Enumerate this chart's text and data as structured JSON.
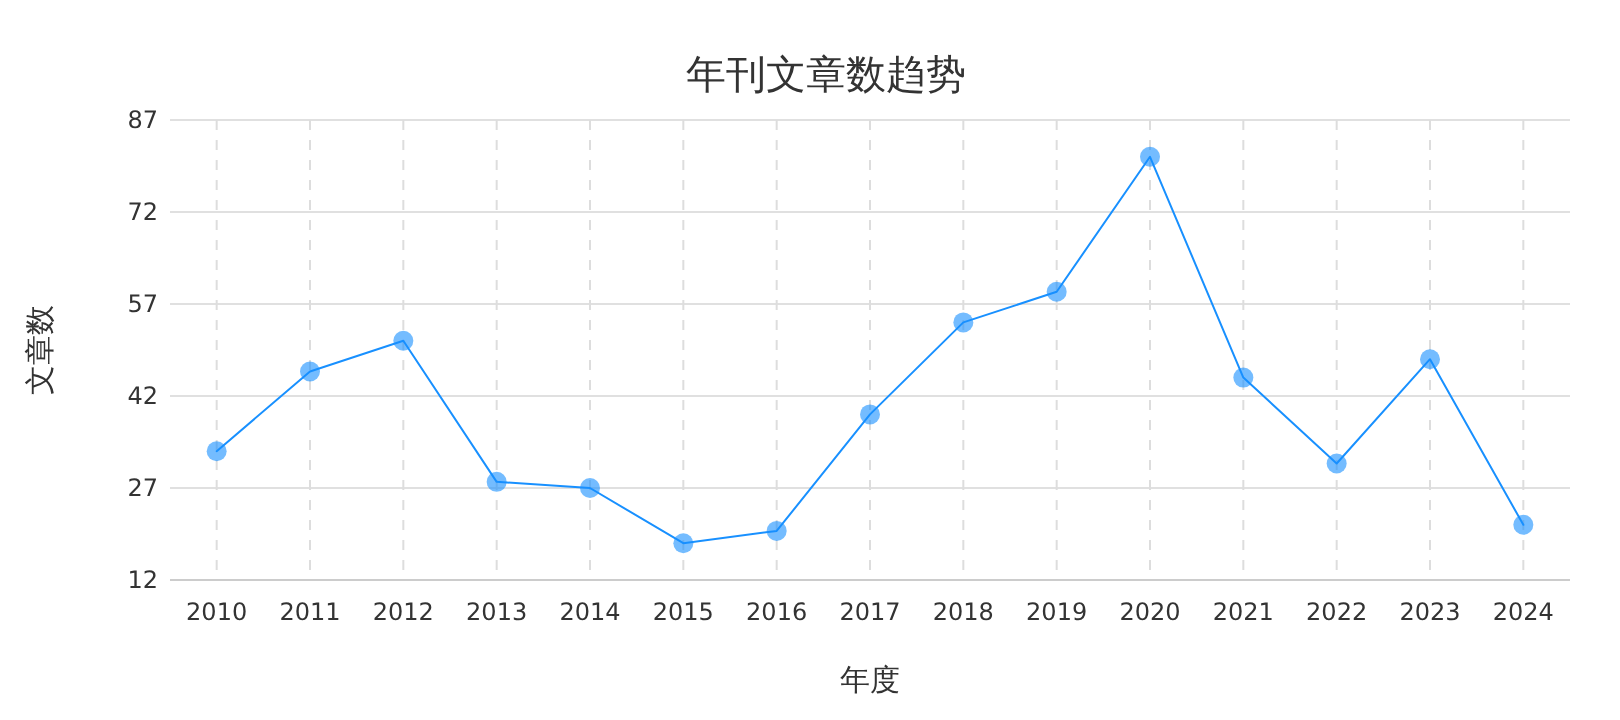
{
  "chart_data": {
    "type": "line",
    "title": "年刊文章数趋势",
    "xlabel": "年度",
    "ylabel": "文章数",
    "categories": [
      "2010",
      "2011",
      "2012",
      "2013",
      "2014",
      "2015",
      "2016",
      "2017",
      "2018",
      "2019",
      "2020",
      "2021",
      "2022",
      "2023",
      "2024"
    ],
    "series": [
      {
        "color": "#1890ff",
        "values": [
          33,
          46,
          51,
          28,
          27,
          18,
          20,
          39,
          54,
          59,
          81,
          45,
          31,
          48,
          21
        ]
      }
    ],
    "ylim": [
      12,
      87
    ],
    "yticks": [
      12,
      27,
      42,
      57,
      72,
      87
    ],
    "grid": true,
    "marker": "circle",
    "line_style": "solid"
  }
}
